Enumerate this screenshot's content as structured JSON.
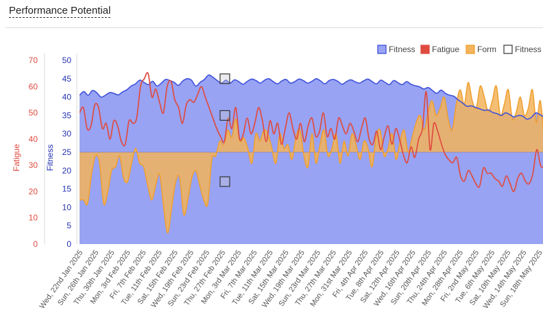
{
  "page": {
    "title": "Performance Potential"
  },
  "colors": {
    "fitness": "#3f51d9",
    "fitness_fill": "#98a3f4",
    "fatigue": "#e04b3f",
    "form": "#f0a030",
    "form_fill": "#f2b45c",
    "overlap_fill": "#8a7a9a",
    "axis_fatigue": "#e04b3f",
    "axis_fitness": "#2230b0"
  },
  "chart_data": {
    "type": "area",
    "ylabel_left": "Fatigue",
    "ylabel_right": "Fitness",
    "fatigue_axis": {
      "min": 0,
      "max": 70,
      "ticks": [
        0,
        10,
        20,
        30,
        40,
        50,
        60,
        70
      ]
    },
    "fitness_axis": {
      "min": 0,
      "max": 50,
      "ticks": [
        0,
        5,
        10,
        15,
        20,
        25,
        30,
        35,
        40,
        45,
        50
      ]
    },
    "form_baseline": 25,
    "x_labels": [
      "Wed, 22nd Jan 2025",
      "Sun, 26th Jan 2025",
      "Thu, 30th Jan 2025",
      "Mon, 3rd Feb 2025",
      "Fri, 7th Feb 2025",
      "Tue, 11th Feb 2025",
      "Sat, 15th Feb 2025",
      "Wed, 19th Feb 2025",
      "Sun, 23rd Feb 2025",
      "Thu, 27th Feb 2025",
      "Mon, 3rd Mar 2025",
      "Fri, 7th Mar 2025",
      "Tue, 11th Mar 2025",
      "Sat, 15th Mar 2025",
      "Wed, 19th Mar 2025",
      "Sun, 23rd Mar 2025",
      "Thu, 27th Mar 2025",
      "Mon, 31st Mar 2025",
      "Fri, 4th Apr 2025",
      "Tue, 8th Apr 2025",
      "Sat, 12th Apr 2025",
      "Wed, 16th Apr 2025",
      "Sun, 20th Apr 2025",
      "Thu, 24th Apr 2025",
      "Mon, 28th Apr 2025",
      "Fri, 2nd May 2025",
      "Tue, 6th May 2025",
      "Sat, 10th May 2025",
      "Wed, 14th May 2025",
      "Sun, 18th May 2025"
    ],
    "series": [
      {
        "name": "Fitness",
        "axis": "fitness",
        "values": [
          40.5,
          41.5,
          40.5,
          41.8,
          41.2,
          40.0,
          40.5,
          41.2,
          41.0,
          40.6,
          41.4,
          42.0,
          43.0,
          43.6,
          44.6,
          44.0,
          43.4,
          44.3,
          43.0,
          43.8,
          44.8,
          44.5,
          44.0,
          43.2,
          44.4,
          45.0,
          44.6,
          43.0,
          44.0,
          44.8,
          46.0,
          45.4,
          44.5,
          43.8,
          44.6,
          43.8,
          44.7,
          44.2,
          43.5,
          44.3,
          44.9,
          44.5,
          43.8,
          44.6,
          45.0,
          44.2,
          43.6,
          44.4,
          44.8,
          43.8,
          44.2,
          44.9,
          44.5,
          43.8,
          44.3,
          45.0,
          44.4,
          43.6,
          44.5,
          44.8,
          44.3,
          43.5,
          44.2,
          44.7,
          44.2,
          43.8,
          44.4,
          44.9,
          44.2,
          43.6,
          44.6,
          44.0,
          43.4,
          44.5,
          43.9,
          43.4,
          44.2,
          43.5,
          43.1,
          42.8,
          42.2,
          42.6,
          41.8,
          41.0,
          41.9,
          41.0,
          40.5,
          40.2,
          39.2,
          38.4,
          37.5,
          37.6,
          37.2,
          36.8,
          36.4,
          36.5,
          35.8,
          35.5,
          35.0,
          35.7,
          35.2,
          34.6,
          35.0,
          34.8,
          34.0,
          34.5,
          35.7,
          35.2,
          34.5
        ]
      },
      {
        "name": "Fatigue",
        "axis": "fatigue",
        "values": [
          50,
          52,
          44,
          45,
          53,
          52,
          44,
          46,
          40,
          47,
          45,
          39,
          38,
          47,
          46,
          48,
          60,
          63,
          65,
          56,
          59,
          54,
          50,
          60,
          62,
          55,
          52,
          46,
          53,
          55,
          54,
          57,
          60,
          56,
          52,
          48,
          44,
          41,
          39,
          48,
          44,
          52,
          40,
          42,
          48,
          42,
          46,
          52,
          47,
          39,
          47,
          42,
          46,
          38,
          44,
          50,
          44,
          40,
          46,
          39,
          45,
          48,
          41,
          43,
          50,
          41,
          44,
          40,
          48,
          45,
          42,
          46,
          43,
          39,
          44,
          48,
          40,
          38,
          43,
          36,
          41,
          45,
          38,
          44,
          40,
          34,
          31,
          37,
          33,
          40,
          44,
          58,
          36,
          46,
          43,
          38,
          34,
          32,
          31,
          33,
          26,
          24,
          28,
          26,
          23,
          22,
          29,
          27,
          27,
          25,
          24,
          22,
          26,
          23,
          20,
          25,
          27,
          24,
          23,
          27,
          36,
          30,
          29
        ]
      },
      {
        "name": "Form",
        "axis": "fitness",
        "values": [
          12,
          12,
          11,
          19,
          24,
          22,
          11,
          14,
          20,
          21,
          24,
          18,
          17,
          22,
          26,
          22,
          21,
          16,
          12,
          16,
          19,
          10,
          3,
          10,
          17,
          18,
          8,
          12,
          18,
          20,
          16,
          12,
          11,
          23,
          24,
          28,
          27,
          31,
          29,
          34,
          28,
          29,
          26,
          22,
          30,
          28,
          31,
          30,
          26,
          22,
          30,
          26,
          27,
          23,
          29,
          31,
          24,
          21,
          30,
          22,
          27,
          31,
          24,
          26,
          30,
          22,
          28,
          24,
          30,
          27,
          23,
          28,
          26,
          21,
          29,
          31,
          24,
          26,
          30,
          23,
          28,
          31,
          25,
          29,
          33,
          35,
          31,
          36,
          39,
          35,
          37,
          40,
          34,
          31,
          38,
          42,
          38,
          44,
          39,
          37,
          43,
          40,
          36,
          39,
          43,
          35,
          38,
          42,
          34,
          36,
          40,
          35,
          37,
          42,
          33,
          39,
          27
        ]
      },
      {
        "name": "Fitness",
        "axis": "fitness",
        "style": "hollow-markers",
        "points": [
          {
            "x_label": "Thu, 27th Feb 2025",
            "values": [
              45,
              35,
              17
            ]
          }
        ]
      }
    ],
    "legend": [
      "Fitness",
      "Fatigue",
      "Form",
      "Fitness"
    ],
    "legend_position": "top-right",
    "grid": false
  }
}
